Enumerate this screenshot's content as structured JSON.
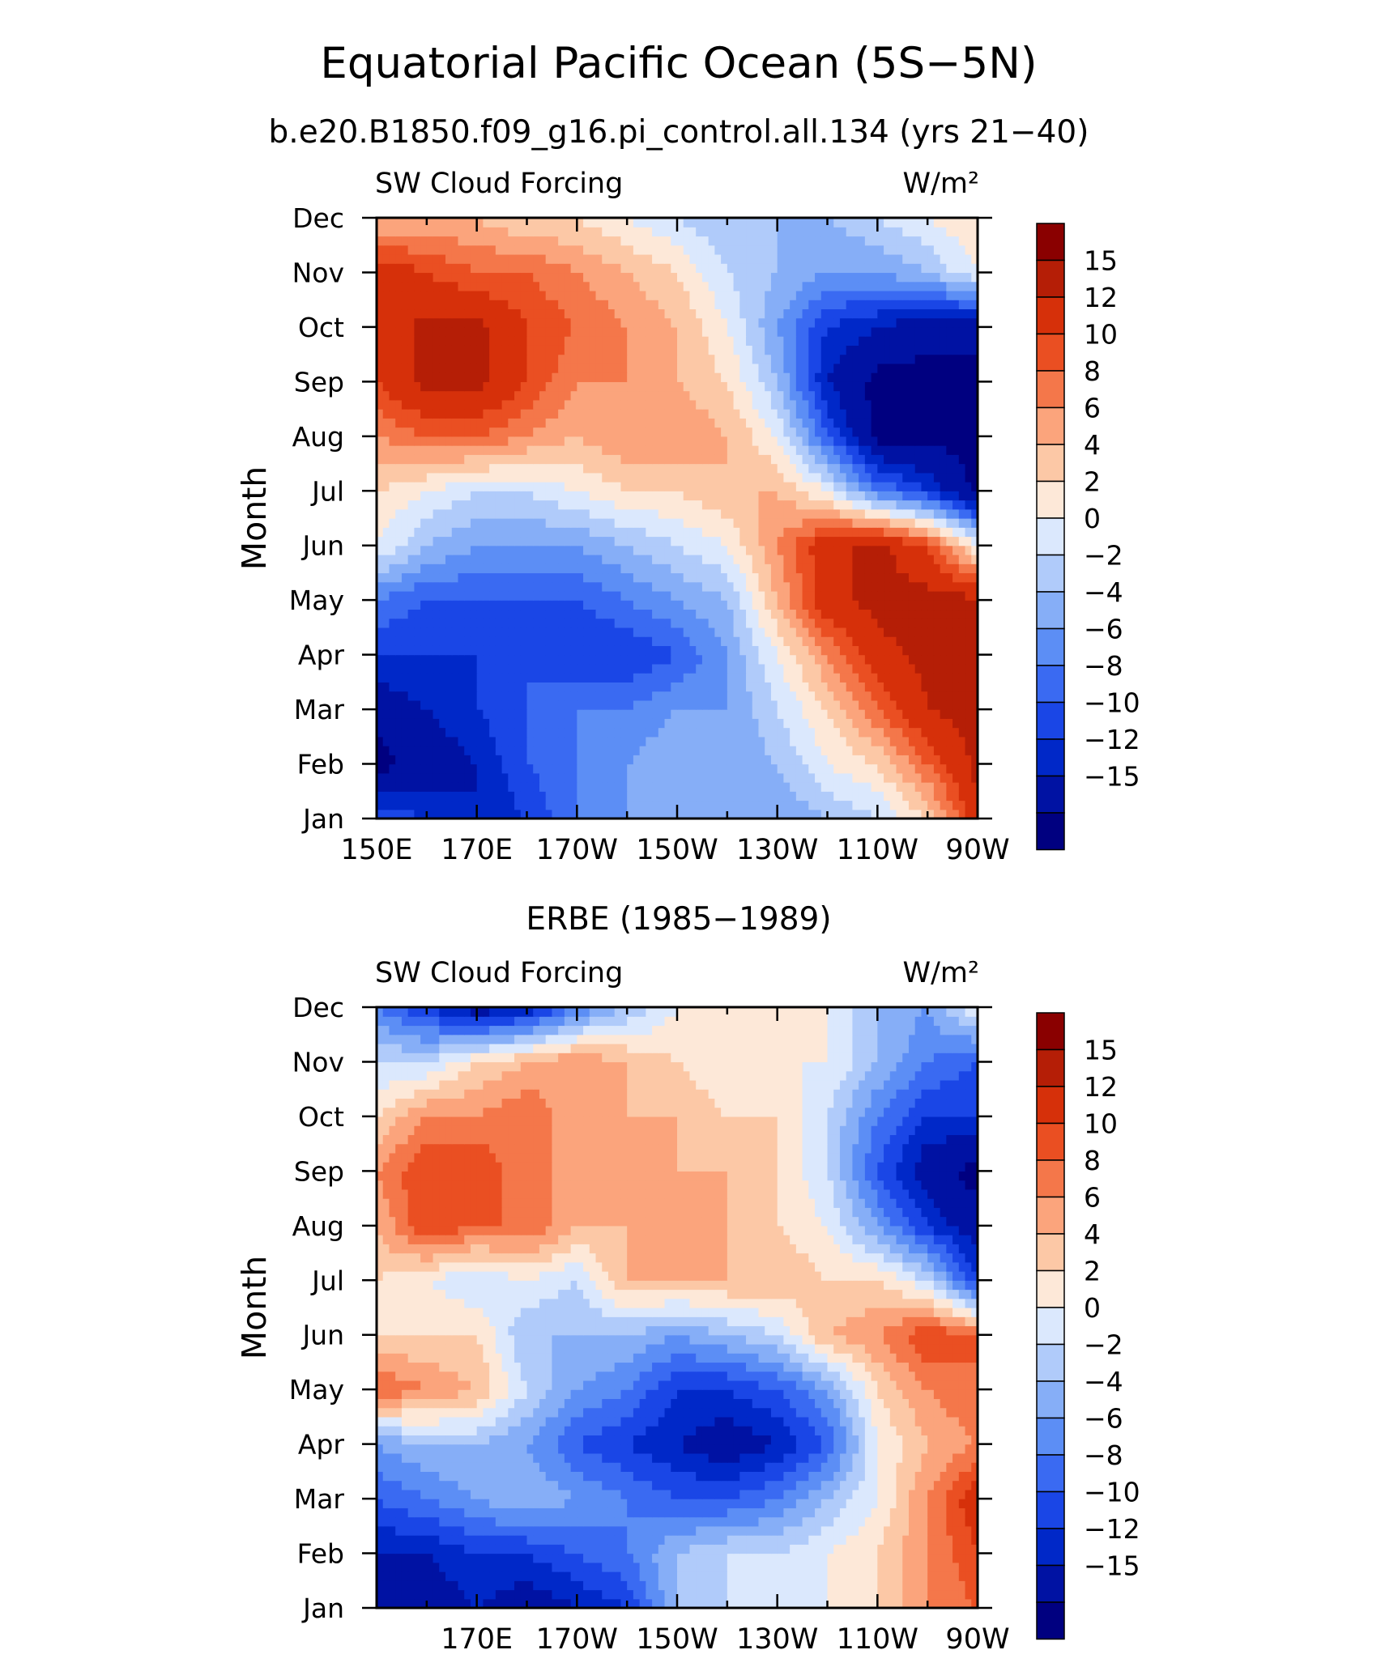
{
  "figure": {
    "title": "Equatorial Pacific Ocean (5S−5N)",
    "subtitle": "b.e20.B1850.f09_g16.pi_control.all.134 (yrs 21−40)",
    "panel2_title": "ERBE (1985−1989)"
  },
  "colors": {
    "levels": [
      "#000080",
      "#0012a3",
      "#0028c8",
      "#1a46e6",
      "#3a6af2",
      "#5c8ef5",
      "#86aef7",
      "#b0cbfa",
      "#dbe8fd",
      "#fde8d8",
      "#fcc8a6",
      "#fba47c",
      "#f4774a",
      "#ea4f22",
      "#d6300a",
      "#b51e06",
      "#8a0000"
    ]
  },
  "chart_data": [
    {
      "type": "heatmap",
      "title": "SW Cloud Forcing",
      "units": "W/m²",
      "ylabel": "Month",
      "xlabel": "",
      "x_ticks": [
        "150E",
        "170E",
        "170W",
        "150W",
        "130W",
        "110W",
        "90W"
      ],
      "x_lon": [
        150,
        170,
        190,
        210,
        230,
        250,
        270
      ],
      "y_ticks": [
        "Jan",
        "Feb",
        "Mar",
        "Apr",
        "May",
        "Jun",
        "Jul",
        "Aug",
        "Sep",
        "Oct",
        "Nov",
        "Dec"
      ],
      "colorbar_labels": [
        "15",
        "12",
        "10",
        "8",
        "6",
        "4",
        "2",
        "0",
        "−2",
        "−4",
        "−6",
        "−8",
        "−10",
        "−12",
        "−15"
      ],
      "levels": [
        -15,
        -12,
        -10,
        -8,
        -6,
        -4,
        -2,
        0,
        2,
        4,
        6,
        8,
        10,
        12,
        15
      ],
      "x_lon_grid": [
        150,
        160,
        170,
        180,
        190,
        200,
        210,
        220,
        230,
        240,
        250,
        260,
        270
      ],
      "grid_values": [
        [
          -8,
          -10,
          -12,
          -10,
          -6,
          -4,
          -2,
          -2,
          -4,
          -2,
          0,
          4,
          14
        ],
        [
          -16,
          -14,
          -12,
          -8,
          -6,
          -4,
          -2,
          -4,
          -2,
          2,
          4,
          10,
          16
        ],
        [
          -14,
          -12,
          -10,
          -8,
          -6,
          -6,
          -4,
          -4,
          0,
          4,
          10,
          15,
          16
        ],
        [
          -10,
          -10,
          -10,
          -8,
          -10,
          -10,
          -8,
          -4,
          2,
          8,
          14,
          16,
          16
        ],
        [
          -6,
          -8,
          -8,
          -8,
          -8,
          -6,
          -4,
          -2,
          6,
          14,
          16,
          16,
          16
        ],
        [
          2,
          -2,
          -4,
          -4,
          -4,
          -2,
          0,
          2,
          8,
          14,
          16,
          12,
          2
        ],
        [
          4,
          2,
          0,
          0,
          2,
          4,
          4,
          6,
          6,
          2,
          -6,
          -10,
          -16
        ],
        [
          8,
          10,
          10,
          8,
          6,
          8,
          8,
          6,
          2,
          -8,
          -16,
          -16,
          -16
        ],
        [
          12,
          16,
          16,
          12,
          8,
          8,
          6,
          4,
          -2,
          -12,
          -16,
          -16,
          -16
        ],
        [
          12,
          16,
          16,
          12,
          10,
          8,
          6,
          2,
          -4,
          -10,
          -12,
          -14,
          -14
        ],
        [
          14,
          12,
          10,
          10,
          8,
          6,
          4,
          0,
          -2,
          -4,
          -4,
          -2,
          2
        ],
        [
          6,
          6,
          6,
          4,
          4,
          2,
          0,
          -2,
          -2,
          -2,
          0,
          2,
          4
        ]
      ]
    },
    {
      "type": "heatmap",
      "title": "SW Cloud Forcing",
      "units": "W/m²",
      "ylabel": "Month",
      "xlabel": "",
      "x_ticks": [
        "170E",
        "170W",
        "150W",
        "130W",
        "110W",
        "90W"
      ],
      "x_lon": [
        170,
        190,
        210,
        230,
        250,
        270
      ],
      "y_ticks": [
        "Jan",
        "Feb",
        "Mar",
        "Apr",
        "May",
        "Jun",
        "Jul",
        "Aug",
        "Sep",
        "Oct",
        "Nov",
        "Dec"
      ],
      "colorbar_labels": [
        "15",
        "12",
        "10",
        "8",
        "6",
        "4",
        "2",
        "0",
        "−2",
        "−4",
        "−6",
        "−8",
        "−10",
        "−12",
        "−15"
      ],
      "levels": [
        -15,
        -12,
        -10,
        -8,
        -6,
        -4,
        -2,
        0,
        2,
        4,
        6,
        8,
        10,
        12,
        15
      ],
      "x_lon_grid": [
        150,
        160,
        170,
        180,
        190,
        200,
        210,
        220,
        230,
        240,
        250,
        260,
        270
      ],
      "grid_values": [
        [
          -12,
          -14,
          -12,
          -14,
          -12,
          -10,
          -2,
          0,
          0,
          2,
          4,
          8,
          10
        ],
        [
          -12,
          -12,
          -10,
          -10,
          -8,
          -6,
          -2,
          0,
          0,
          2,
          4,
          8,
          12
        ],
        [
          -8,
          -6,
          -4,
          -2,
          -4,
          -6,
          -8,
          -8,
          -6,
          -2,
          2,
          8,
          14
        ],
        [
          -4,
          -2,
          -2,
          -4,
          -8,
          -10,
          -12,
          -14,
          -12,
          -8,
          2,
          6,
          8
        ],
        [
          10,
          8,
          6,
          0,
          -4,
          -6,
          -10,
          -10,
          -8,
          -4,
          4,
          8,
          10
        ],
        [
          4,
          4,
          4,
          -2,
          -2,
          -2,
          -4,
          -2,
          0,
          6,
          8,
          12,
          10
        ],
        [
          4,
          2,
          0,
          2,
          0,
          6,
          6,
          6,
          6,
          4,
          4,
          0,
          -10
        ],
        [
          6,
          12,
          10,
          10,
          6,
          6,
          8,
          6,
          4,
          2,
          -4,
          -10,
          -14
        ],
        [
          8,
          12,
          12,
          8,
          8,
          6,
          6,
          6,
          4,
          0,
          -8,
          -14,
          -16
        ],
        [
          4,
          8,
          8,
          10,
          6,
          6,
          6,
          4,
          4,
          0,
          -6,
          -10,
          -10
        ],
        [
          0,
          0,
          4,
          6,
          8,
          6,
          4,
          2,
          2,
          2,
          -2,
          -6,
          -8
        ],
        [
          -6,
          -10,
          -14,
          -12,
          -6,
          -2,
          2,
          2,
          2,
          2,
          -2,
          -4,
          2
        ]
      ]
    }
  ]
}
